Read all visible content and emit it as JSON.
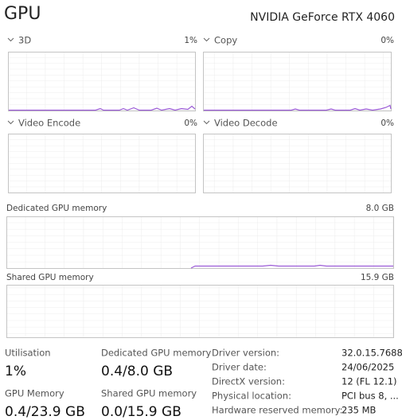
{
  "header": {
    "title": "GPU",
    "device": "NVIDIA GeForce RTX 4060"
  },
  "engines": [
    {
      "name": "3D",
      "value": "1%"
    },
    {
      "name": "Copy",
      "value": "0%"
    },
    {
      "name": "Video Encode",
      "value": "0%"
    },
    {
      "name": "Video Decode",
      "value": "0%"
    }
  ],
  "memory_graphs": [
    {
      "name": "Dedicated GPU memory",
      "max": "8.0 GB"
    },
    {
      "name": "Shared GPU memory",
      "max": "15.9 GB"
    }
  ],
  "stats": [
    {
      "label": "Utilisation",
      "value": "1%"
    },
    {
      "label": "Dedicated GPU memory",
      "value": "0.4/8.0 GB"
    },
    {
      "label": "GPU Memory",
      "value": "0.4/23.9 GB"
    },
    {
      "label": "Shared GPU memory",
      "value": "0.0/15.9 GB"
    }
  ],
  "details": [
    {
      "label": "Driver version:",
      "value": "32.0.15.7688"
    },
    {
      "label": "Driver date:",
      "value": "24/06/2025"
    },
    {
      "label": "DirectX version:",
      "value": "12 (FL 12.1)"
    },
    {
      "label": "Physical location:",
      "value": "PCI bus 8, ..."
    },
    {
      "label": "Hardware reserved memory:",
      "value": "235 MB"
    }
  ]
}
